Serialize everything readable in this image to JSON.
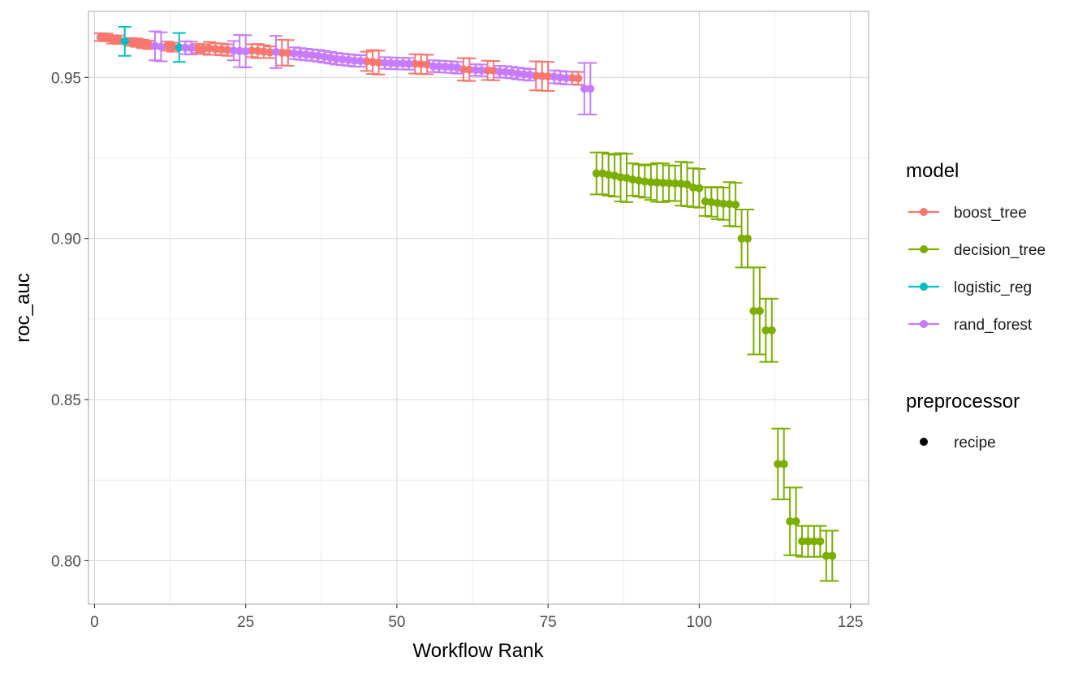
{
  "chart_data": {
    "type": "scatter",
    "xlabel": "Workflow Rank",
    "ylabel": "roc_auc",
    "xlim": [
      -1,
      128
    ],
    "ylim": [
      0.7865,
      0.9705
    ],
    "x_ticks": [
      0,
      25,
      50,
      75,
      100,
      125
    ],
    "y_ticks": [
      0.8,
      0.85,
      0.9,
      0.95
    ],
    "x_tick_labels": [
      "0",
      "25",
      "50",
      "75",
      "100",
      "125"
    ],
    "y_tick_labels": [
      "0.80",
      "0.85",
      "0.90",
      "0.95"
    ],
    "grid": true,
    "error_bars": true,
    "legend_placement": "right",
    "legend": {
      "model_title": "model",
      "preprocessor_title": "preprocessor",
      "preprocessor_items": [
        "recipe"
      ]
    },
    "series": [
      {
        "name": "boost_tree",
        "color": "#F8766D",
        "points": [
          {
            "x": 1,
            "y": 0.9625,
            "e": 0.0012
          },
          {
            "x": 2,
            "y": 0.9624,
            "e": 0.0012
          },
          {
            "x": 3,
            "y": 0.9618,
            "e": 0.0013
          },
          {
            "x": 4,
            "y": 0.9617,
            "e": 0.0013
          },
          {
            "x": 6,
            "y": 0.961,
            "e": 0.0012
          },
          {
            "x": 7,
            "y": 0.9608,
            "e": 0.0013
          },
          {
            "x": 8,
            "y": 0.9604,
            "e": 0.0013
          },
          {
            "x": 9,
            "y": 0.9601,
            "e": 0.0013
          },
          {
            "x": 12,
            "y": 0.9597,
            "e": 0.0014
          },
          {
            "x": 13,
            "y": 0.9594,
            "e": 0.0014
          },
          {
            "x": 17,
            "y": 0.959,
            "e": 0.0014
          },
          {
            "x": 18,
            "y": 0.9588,
            "e": 0.0015
          },
          {
            "x": 19,
            "y": 0.959,
            "e": 0.002
          },
          {
            "x": 20,
            "y": 0.9588,
            "e": 0.0018
          },
          {
            "x": 21,
            "y": 0.9587,
            "e": 0.0018
          },
          {
            "x": 22,
            "y": 0.9585,
            "e": 0.0018
          },
          {
            "x": 26,
            "y": 0.9583,
            "e": 0.002
          },
          {
            "x": 27,
            "y": 0.9582,
            "e": 0.0022
          },
          {
            "x": 28,
            "y": 0.958,
            "e": 0.002
          },
          {
            "x": 29,
            "y": 0.9578,
            "e": 0.0018
          },
          {
            "x": 31,
            "y": 0.9577,
            "e": 0.004
          },
          {
            "x": 32,
            "y": 0.9576,
            "e": 0.004
          },
          {
            "x": 45,
            "y": 0.955,
            "e": 0.003
          },
          {
            "x": 46,
            "y": 0.9548,
            "e": 0.0037
          },
          {
            "x": 47,
            "y": 0.9546,
            "e": 0.0037
          },
          {
            "x": 53,
            "y": 0.9542,
            "e": 0.003
          },
          {
            "x": 54,
            "y": 0.9541,
            "e": 0.003
          },
          {
            "x": 55,
            "y": 0.954,
            "e": 0.003
          },
          {
            "x": 61,
            "y": 0.9525,
            "e": 0.0035
          },
          {
            "x": 62,
            "y": 0.9524,
            "e": 0.0035
          },
          {
            "x": 65,
            "y": 0.9522,
            "e": 0.003
          },
          {
            "x": 66,
            "y": 0.9521,
            "e": 0.003
          },
          {
            "x": 73,
            "y": 0.9505,
            "e": 0.0045
          },
          {
            "x": 74,
            "y": 0.9504,
            "e": 0.0045
          },
          {
            "x": 75,
            "y": 0.9503,
            "e": 0.0045
          },
          {
            "x": 79,
            "y": 0.9498,
            "e": 0.002
          },
          {
            "x": 80,
            "y": 0.9497,
            "e": 0.002
          }
        ]
      },
      {
        "name": "decision_tree",
        "color": "#7CAE00",
        "points": [
          {
            "x": 83,
            "y": 0.9202,
            "e": 0.0065
          },
          {
            "x": 84,
            "y": 0.9202,
            "e": 0.0065
          },
          {
            "x": 85,
            "y": 0.9198,
            "e": 0.0065
          },
          {
            "x": 86,
            "y": 0.9195,
            "e": 0.0065
          },
          {
            "x": 87,
            "y": 0.919,
            "e": 0.0075
          },
          {
            "x": 88,
            "y": 0.9188,
            "e": 0.0075
          },
          {
            "x": 89,
            "y": 0.9183,
            "e": 0.005
          },
          {
            "x": 90,
            "y": 0.918,
            "e": 0.005
          },
          {
            "x": 91,
            "y": 0.9177,
            "e": 0.005
          },
          {
            "x": 92,
            "y": 0.9175,
            "e": 0.0055
          },
          {
            "x": 93,
            "y": 0.9174,
            "e": 0.006
          },
          {
            "x": 94,
            "y": 0.9173,
            "e": 0.006
          },
          {
            "x": 95,
            "y": 0.9172,
            "e": 0.0055
          },
          {
            "x": 96,
            "y": 0.9171,
            "e": 0.0055
          },
          {
            "x": 97,
            "y": 0.917,
            "e": 0.0068
          },
          {
            "x": 98,
            "y": 0.9168,
            "e": 0.0068
          },
          {
            "x": 99,
            "y": 0.9158,
            "e": 0.006
          },
          {
            "x": 100,
            "y": 0.9156,
            "e": 0.006
          },
          {
            "x": 101,
            "y": 0.9115,
            "e": 0.0045
          },
          {
            "x": 102,
            "y": 0.9113,
            "e": 0.0045
          },
          {
            "x": 103,
            "y": 0.911,
            "e": 0.005
          },
          {
            "x": 104,
            "y": 0.9108,
            "e": 0.005
          },
          {
            "x": 105,
            "y": 0.9107,
            "e": 0.0068
          },
          {
            "x": 106,
            "y": 0.9105,
            "e": 0.0068
          },
          {
            "x": 107,
            "y": 0.9,
            "e": 0.009
          },
          {
            "x": 108,
            "y": 0.9,
            "e": 0.009
          },
          {
            "x": 109,
            "y": 0.8775,
            "e": 0.0135
          },
          {
            "x": 110,
            "y": 0.8775,
            "e": 0.0135
          },
          {
            "x": 111,
            "y": 0.8715,
            "e": 0.0098
          },
          {
            "x": 112,
            "y": 0.8715,
            "e": 0.0098
          },
          {
            "x": 113,
            "y": 0.83,
            "e": 0.011
          },
          {
            "x": 114,
            "y": 0.83,
            "e": 0.011
          },
          {
            "x": 115,
            "y": 0.8122,
            "e": 0.0105
          },
          {
            "x": 116,
            "y": 0.8122,
            "e": 0.0105
          },
          {
            "x": 117,
            "y": 0.806,
            "e": 0.0048
          },
          {
            "x": 118,
            "y": 0.806,
            "e": 0.0048
          },
          {
            "x": 119,
            "y": 0.806,
            "e": 0.0048
          },
          {
            "x": 120,
            "y": 0.806,
            "e": 0.0048
          },
          {
            "x": 121,
            "y": 0.8015,
            "e": 0.0078
          },
          {
            "x": 122,
            "y": 0.8015,
            "e": 0.0078
          }
        ]
      },
      {
        "name": "logistic_reg",
        "color": "#00BFC4",
        "points": [
          {
            "x": 5,
            "y": 0.9612,
            "e": 0.0045
          },
          {
            "x": 14,
            "y": 0.9593,
            "e": 0.0045
          }
        ]
      },
      {
        "name": "rand_forest",
        "color": "#C77CFF",
        "points": [
          {
            "x": 10,
            "y": 0.9598,
            "e": 0.0045
          },
          {
            "x": 11,
            "y": 0.9595,
            "e": 0.0045
          },
          {
            "x": 15,
            "y": 0.9592,
            "e": 0.002
          },
          {
            "x": 16,
            "y": 0.9591,
            "e": 0.002
          },
          {
            "x": 23,
            "y": 0.9583,
            "e": 0.003
          },
          {
            "x": 24,
            "y": 0.9582,
            "e": 0.005
          },
          {
            "x": 25,
            "y": 0.9581,
            "e": 0.005
          },
          {
            "x": 30,
            "y": 0.9579,
            "e": 0.005
          },
          {
            "x": 33,
            "y": 0.9575,
            "e": 0.0018
          },
          {
            "x": 34,
            "y": 0.9573,
            "e": 0.0018
          },
          {
            "x": 35,
            "y": 0.9571,
            "e": 0.0018
          },
          {
            "x": 36,
            "y": 0.9569,
            "e": 0.0018
          },
          {
            "x": 37,
            "y": 0.9567,
            "e": 0.0018
          },
          {
            "x": 38,
            "y": 0.9564,
            "e": 0.0018
          },
          {
            "x": 39,
            "y": 0.9561,
            "e": 0.0018
          },
          {
            "x": 40,
            "y": 0.9558,
            "e": 0.0018
          },
          {
            "x": 41,
            "y": 0.9556,
            "e": 0.0018
          },
          {
            "x": 42,
            "y": 0.9554,
            "e": 0.0018
          },
          {
            "x": 43,
            "y": 0.9552,
            "e": 0.0018
          },
          {
            "x": 44,
            "y": 0.9551,
            "e": 0.0018
          },
          {
            "x": 48,
            "y": 0.9545,
            "e": 0.0018
          },
          {
            "x": 49,
            "y": 0.9544,
            "e": 0.0018
          },
          {
            "x": 50,
            "y": 0.9543,
            "e": 0.0018
          },
          {
            "x": 51,
            "y": 0.9543,
            "e": 0.0018
          },
          {
            "x": 52,
            "y": 0.9542,
            "e": 0.0018
          },
          {
            "x": 56,
            "y": 0.9535,
            "e": 0.0018
          },
          {
            "x": 57,
            "y": 0.9534,
            "e": 0.0018
          },
          {
            "x": 58,
            "y": 0.9533,
            "e": 0.0018
          },
          {
            "x": 59,
            "y": 0.9532,
            "e": 0.0018
          },
          {
            "x": 60,
            "y": 0.953,
            "e": 0.0018
          },
          {
            "x": 63,
            "y": 0.9523,
            "e": 0.0018
          },
          {
            "x": 64,
            "y": 0.9522,
            "e": 0.0018
          },
          {
            "x": 67,
            "y": 0.9518,
            "e": 0.0018
          },
          {
            "x": 68,
            "y": 0.9517,
            "e": 0.0018
          },
          {
            "x": 69,
            "y": 0.9515,
            "e": 0.0018
          },
          {
            "x": 70,
            "y": 0.9512,
            "e": 0.0018
          },
          {
            "x": 71,
            "y": 0.951,
            "e": 0.0018
          },
          {
            "x": 72,
            "y": 0.9508,
            "e": 0.0018
          },
          {
            "x": 76,
            "y": 0.9502,
            "e": 0.002
          },
          {
            "x": 77,
            "y": 0.95,
            "e": 0.002
          },
          {
            "x": 78,
            "y": 0.9498,
            "e": 0.002
          },
          {
            "x": 81,
            "y": 0.9465,
            "e": 0.008
          },
          {
            "x": 82,
            "y": 0.9465,
            "e": 0.008
          }
        ]
      }
    ]
  }
}
